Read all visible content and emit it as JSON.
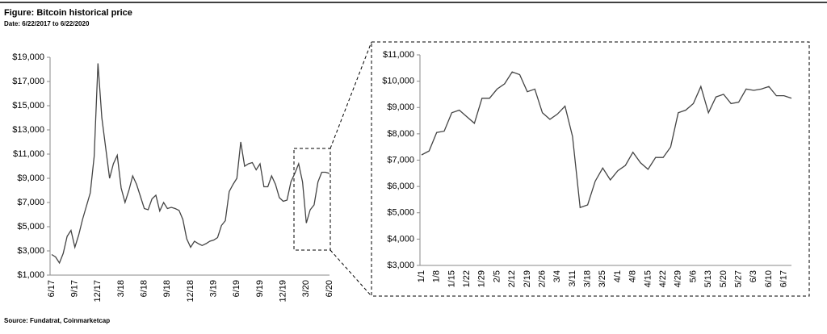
{
  "header": {
    "title": "Figure: Bitcoin historical price",
    "subtitle": "Date: 6/22/2017 to 6/22/2020"
  },
  "footer": {
    "source": "Source: Fundatrat, Coinmarketcap"
  },
  "chart_data": [
    {
      "type": "line",
      "color": "#444444",
      "categories": [
        "6/17",
        null,
        null,
        null,
        null,
        null,
        "9/17",
        null,
        null,
        null,
        null,
        null,
        "12/17",
        null,
        null,
        null,
        null,
        null,
        "3/18",
        null,
        null,
        null,
        null,
        null,
        "6/18",
        null,
        null,
        null,
        null,
        null,
        "9/18",
        null,
        null,
        null,
        null,
        null,
        "12/18",
        null,
        null,
        null,
        null,
        null,
        "3/19",
        null,
        null,
        null,
        null,
        null,
        "6/19",
        null,
        null,
        null,
        null,
        null,
        "9/19",
        null,
        null,
        null,
        null,
        null,
        "12/19",
        null,
        null,
        null,
        null,
        null,
        "3/20",
        null,
        null,
        null,
        null,
        null,
        "6/20"
      ],
      "values": [
        2700,
        2500,
        2000,
        2800,
        4200,
        4700,
        3300,
        4300,
        5600,
        6700,
        7800,
        10800,
        18500,
        14000,
        11500,
        9000,
        10200,
        10900,
        8200,
        7000,
        8000,
        9200,
        8500,
        7500,
        6500,
        6400,
        7300,
        7600,
        6300,
        7000,
        6500,
        6600,
        6500,
        6350,
        5600,
        4000,
        3300,
        3800,
        3600,
        3450,
        3600,
        3800,
        3900,
        4100,
        5100,
        5500,
        7900,
        8500,
        9000,
        12000,
        10000,
        10200,
        10300,
        9700,
        10200,
        8300,
        8300,
        9200,
        8500,
        7400,
        7100,
        7200,
        8700,
        9400,
        10200,
        8700,
        5300,
        6400,
        6800,
        8700,
        9500,
        9500,
        9400
      ],
      "ylim": [
        1000,
        19000
      ],
      "yticks": [
        {
          "value": 1000,
          "label": "$1,000"
        },
        {
          "value": 3000,
          "label": "$3,000"
        },
        {
          "value": 5000,
          "label": "$5,000"
        },
        {
          "value": 7000,
          "label": "$7,000"
        },
        {
          "value": 9000,
          "label": "$9,000"
        },
        {
          "value": 11000,
          "label": "$11,000"
        },
        {
          "value": 13000,
          "label": "$13,000"
        },
        {
          "value": 15000,
          "label": "$15,000"
        },
        {
          "value": 17000,
          "label": "$17,000"
        },
        {
          "value": 19000,
          "label": "$19,000"
        }
      ]
    },
    {
      "type": "line",
      "color": "#444444",
      "categories": [
        "1/1",
        null,
        "1/8",
        null,
        "1/15",
        null,
        "1/22",
        null,
        "1/29",
        null,
        "2/5",
        null,
        "2/12",
        null,
        "2/19",
        null,
        "2/26",
        null,
        "3/4",
        null,
        "3/11",
        null,
        "3/18",
        null,
        "3/25",
        null,
        "4/1",
        null,
        "4/8",
        null,
        "4/15",
        null,
        "4/22",
        null,
        "4/29",
        null,
        "5/6",
        null,
        "5/13",
        null,
        "5/20",
        null,
        "5/27",
        null,
        "6/3",
        null,
        "6/10",
        null,
        "6/17",
        null
      ],
      "values": [
        7200,
        7350,
        8050,
        8100,
        8800,
        8900,
        8650,
        8400,
        9350,
        9350,
        9700,
        9900,
        10350,
        10250,
        9600,
        9700,
        8800,
        8550,
        8750,
        9050,
        7900,
        5200,
        5300,
        6200,
        6700,
        6250,
        6600,
        6800,
        7300,
        6900,
        6650,
        7100,
        7100,
        7500,
        8800,
        8900,
        9150,
        9800,
        8800,
        9400,
        9500,
        9150,
        9200,
        9700,
        9650,
        9700,
        9800,
        9450,
        9450,
        9350
      ],
      "ylim": [
        3000,
        11000
      ],
      "yticks": [
        {
          "value": 3000,
          "label": "$3,000"
        },
        {
          "value": 4000,
          "label": "$4,000"
        },
        {
          "value": 5000,
          "label": "$5,000"
        },
        {
          "value": 6000,
          "label": "$6,000"
        },
        {
          "value": 7000,
          "label": "$7,000"
        },
        {
          "value": 8000,
          "label": "$8,000"
        },
        {
          "value": 9000,
          "label": "$9,000"
        },
        {
          "value": 10000,
          "label": "$10,000"
        },
        {
          "value": 11000,
          "label": "$11,000"
        }
      ]
    }
  ]
}
